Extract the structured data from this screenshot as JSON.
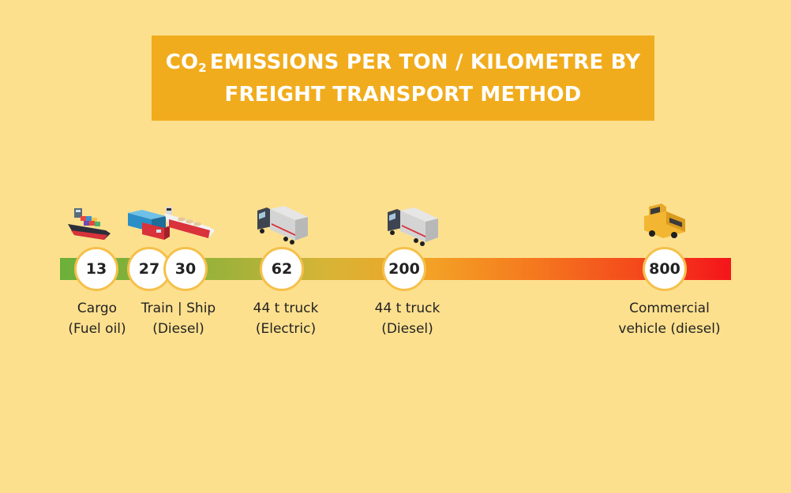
{
  "title": {
    "co2": "CO",
    "co2_sub": "2",
    "line1_rest": "EMISSIONS PER TON / KILOMETRE BY",
    "line2": "FREIGHT TRANSPORT METHOD"
  },
  "markers": [
    {
      "value": "13",
      "icon": "cargo-ship-icon"
    },
    {
      "value": "27",
      "icon": "train-icon"
    },
    {
      "value": "30",
      "icon": "ship-icon"
    },
    {
      "value": "62",
      "icon": "electric-truck-icon"
    },
    {
      "value": "200",
      "icon": "diesel-truck-icon"
    },
    {
      "value": "800",
      "icon": "commercial-van-icon"
    }
  ],
  "labels": {
    "cargo": [
      "Cargo",
      "(Fuel oil)"
    ],
    "train_ship": [
      "Train | Ship",
      "(Diesel)"
    ],
    "truck_electric": [
      "44 t truck",
      "(Electric)"
    ],
    "truck_diesel": [
      "44 t truck",
      "(Diesel)"
    ],
    "commercial": [
      "Commercial",
      "vehicle (diesel)"
    ]
  },
  "colors": {
    "background": "#fde08e",
    "title_box": "#f1ac1d",
    "bar_start": "#6bb03a",
    "bar_end": "#f4141a",
    "marker_border": "#f5c04a"
  }
}
